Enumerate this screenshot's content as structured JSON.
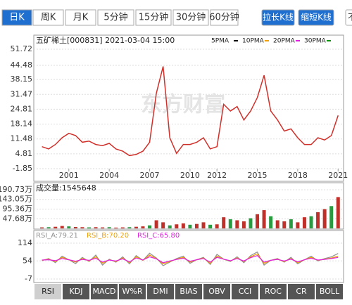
{
  "tabs": [
    {
      "label": "日K",
      "selected": true
    },
    {
      "label": "周K"
    },
    {
      "label": "月K"
    },
    {
      "label": "5分钟"
    },
    {
      "label": "15分钟"
    },
    {
      "label": "30分钟"
    },
    {
      "label": "60分钟"
    }
  ],
  "buttons": [
    "拉长K线",
    "缩短K线",
    "不"
  ],
  "chart_data": [
    {
      "type": "line",
      "title": "五矿稀土[000831]  2021-03-04 15:00",
      "watermark": "东方财富",
      "legend": [
        {
          "name": "5PMA",
          "color": "#000000"
        },
        {
          "name": "10PMA",
          "color": "#f0a000"
        },
        {
          "name": "20PMA",
          "color": "#e020e0"
        },
        {
          "name": "30PMA",
          "color": "#109010"
        }
      ],
      "color": "#d0302a",
      "x": [
        1999,
        1999.5,
        2000,
        2000.5,
        2001,
        2001.5,
        2002,
        2002.5,
        2003,
        2003.5,
        2004,
        2004.5,
        2005,
        2005.5,
        2006,
        2006.5,
        2007,
        2007.5,
        2008,
        2008.5,
        2009,
        2009.5,
        2010,
        2010.5,
        2011,
        2011.5,
        2012,
        2012.5,
        2013,
        2013.5,
        2014,
        2014.5,
        2015,
        2015.5,
        2016,
        2016.5,
        2017,
        2017.5,
        2018,
        2018.5,
        2019,
        2019.5,
        2020,
        2020.5,
        2021
      ],
      "values": [
        8,
        7,
        9,
        12,
        14,
        13,
        10,
        10.5,
        9,
        8.5,
        9.5,
        7,
        6,
        4,
        4.5,
        6,
        10,
        32,
        44,
        12,
        5,
        9,
        9,
        10,
        12,
        7,
        8,
        27,
        24,
        26,
        20,
        24,
        30,
        40,
        24,
        20,
        15,
        16,
        12,
        9,
        9,
        12,
        11,
        13,
        22
      ],
      "xlim": [
        1998.5,
        2021.3
      ],
      "xticks": [
        2001,
        2004,
        2007,
        2010,
        2012,
        2015,
        2018,
        2021
      ],
      "ylim": [
        -1.85,
        51.72
      ],
      "yticks": [
        51.72,
        44.48,
        38.15,
        31.47,
        24.81,
        18.14,
        11.48,
        4.81,
        -1.85
      ]
    },
    {
      "type": "bar",
      "title": "成交量:1545648",
      "color": "#c0302a",
      "x": [
        1999,
        1999.5,
        2000,
        2000.5,
        2001,
        2001.5,
        2002,
        2002.5,
        2003,
        2003.5,
        2004,
        2004.5,
        2005,
        2005.5,
        2006,
        2006.5,
        2007,
        2007.5,
        2008,
        2008.5,
        2009,
        2009.5,
        2010,
        2010.5,
        2011,
        2011.5,
        2012,
        2012.5,
        2013,
        2013.5,
        2014,
        2014.5,
        2015,
        2015.5,
        2016,
        2016.5,
        2017,
        2017.5,
        2018,
        2018.5,
        2019,
        2019.5,
        2020,
        2020.5,
        2021
      ],
      "values": [
        5,
        6,
        8,
        12,
        10,
        7,
        6,
        5,
        6,
        5,
        6,
        4,
        5,
        6,
        8,
        10,
        15,
        40,
        30,
        15,
        20,
        25,
        18,
        22,
        30,
        18,
        20,
        55,
        45,
        40,
        35,
        50,
        70,
        90,
        60,
        40,
        35,
        45,
        30,
        55,
        60,
        80,
        95,
        110,
        154.56
      ],
      "xlim": [
        1998.5,
        2021.3
      ],
      "ylim": [
        0,
        190.73
      ],
      "yticks": [
        {
          "value": 190.73,
          "label": "190.73万"
        },
        {
          "value": 143.05,
          "label": "143.05万"
        },
        {
          "value": 95.36,
          "label": "95.36万"
        },
        {
          "value": 47.68,
          "label": "47.68万"
        }
      ]
    },
    {
      "type": "line",
      "x": [
        1999,
        1999.5,
        2000,
        2000.5,
        2001,
        2001.5,
        2002,
        2002.5,
        2003,
        2003.5,
        2004,
        2004.5,
        2005,
        2005.5,
        2006,
        2006.5,
        2007,
        2007.5,
        2008,
        2008.5,
        2009,
        2009.5,
        2010,
        2010.5,
        2011,
        2011.5,
        2012,
        2012.5,
        2013,
        2013.5,
        2014,
        2014.5,
        2015,
        2015.5,
        2016,
        2016.5,
        2017,
        2017.5,
        2018,
        2018.5,
        2019,
        2019.5,
        2020,
        2020.5,
        2021
      ],
      "series": [
        {
          "name": "RSI_A:79.21",
          "color": "#909090",
          "values": [
            55,
            62,
            48,
            70,
            58,
            45,
            66,
            52,
            74,
            40,
            60,
            50,
            68,
            44,
            72,
            56,
            80,
            64,
            38,
            50,
            62,
            70,
            46,
            58,
            66,
            42,
            76,
            60,
            52,
            68,
            48,
            72,
            84,
            40,
            56,
            62,
            50,
            66,
            44,
            58,
            70,
            54,
            62,
            68,
            79.21
          ]
        },
        {
          "name": "RSI_B:70.20",
          "color": "#f0a000",
          "values": [
            56,
            60,
            52,
            66,
            58,
            50,
            62,
            54,
            68,
            46,
            58,
            52,
            64,
            48,
            68,
            56,
            74,
            62,
            44,
            52,
            60,
            66,
            50,
            58,
            64,
            46,
            70,
            60,
            54,
            64,
            52,
            68,
            78,
            46,
            56,
            60,
            52,
            62,
            48,
            58,
            66,
            56,
            60,
            64,
            70.2
          ]
        },
        {
          "name": "RSI_C:65.80",
          "color": "#e020e0",
          "values": [
            57,
            58,
            55,
            62,
            58,
            53,
            59,
            56,
            63,
            50,
            57,
            54,
            61,
            51,
            64,
            57,
            68,
            61,
            48,
            54,
            59,
            63,
            53,
            58,
            62,
            50,
            66,
            60,
            55,
            62,
            54,
            65,
            72,
            50,
            56,
            59,
            54,
            60,
            51,
            58,
            63,
            57,
            59,
            62,
            65.8
          ]
        }
      ],
      "xlim": [
        1998.5,
        2021.3
      ],
      "ylim": [
        -7,
        114
      ],
      "yticks": [
        114,
        54,
        -7
      ]
    }
  ],
  "indicator_tabs": [
    {
      "label": "RSI",
      "selected": true
    },
    {
      "label": "KDJ"
    },
    {
      "label": "MACD"
    },
    {
      "label": "W%R"
    },
    {
      "label": "DMI"
    },
    {
      "label": "BIAS"
    },
    {
      "label": "OBV"
    },
    {
      "label": "CCI"
    },
    {
      "label": "ROC"
    },
    {
      "label": "CR"
    },
    {
      "label": "BOLL"
    }
  ]
}
